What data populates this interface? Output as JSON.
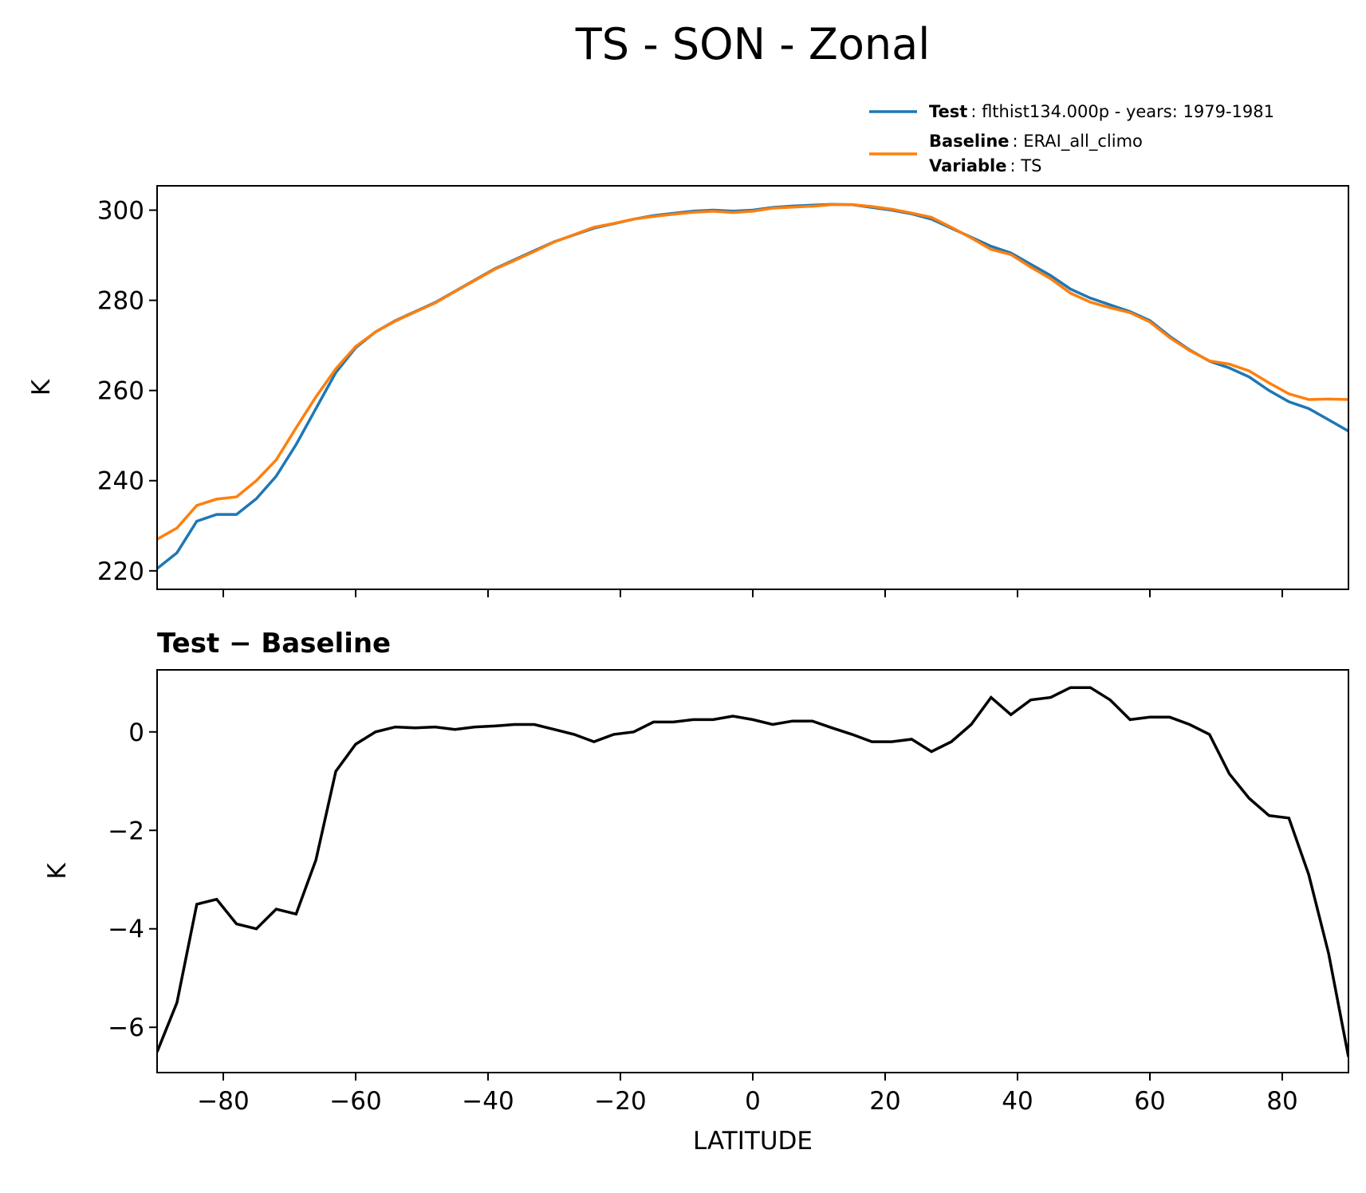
{
  "title": "TS - SON - Zonal",
  "chart_data": [
    {
      "type": "line",
      "ylabel": "K",
      "x": [
        -90,
        -87,
        -84,
        -81,
        -78,
        -75,
        -72,
        -69,
        -66,
        -63,
        -60,
        -57,
        -54,
        -51,
        -48,
        -45,
        -42,
        -39,
        -36,
        -33,
        -30,
        -27,
        -24,
        -21,
        -18,
        -15,
        -12,
        -9,
        -6,
        -3,
        0,
        3,
        6,
        9,
        12,
        15,
        18,
        21,
        24,
        27,
        30,
        33,
        36,
        39,
        42,
        45,
        48,
        51,
        54,
        57,
        60,
        63,
        66,
        69,
        72,
        75,
        78,
        81,
        84,
        87,
        90
      ],
      "series": [
        {
          "name": "Test",
          "description": ": flthist134.000p - years: 1979-1981",
          "color": "#1f77b4",
          "values": [
            220.5,
            224,
            231,
            232.5,
            232.5,
            236,
            241,
            248,
            256,
            264,
            269.5,
            273,
            275.5,
            277.5,
            279.5,
            282,
            284.5,
            287,
            289,
            291,
            293,
            294.5,
            296,
            297,
            298,
            298.8,
            299.3,
            299.8,
            300,
            299.8,
            300,
            300.6,
            300.9,
            301.1,
            301.3,
            301.2,
            300.6,
            300,
            299.2,
            298,
            296,
            294,
            292,
            290.5,
            288,
            285.5,
            282.5,
            280.5,
            279,
            277.5,
            275.5,
            272,
            269,
            266.5,
            265,
            263,
            260,
            257.5,
            256,
            253.5,
            251
          ]
        },
        {
          "name": "Baseline",
          "description": ": ERAI_all_climo",
          "color": "#ff7f0e",
          "values": [
            227,
            229.5,
            234.5,
            235.9,
            236.4,
            240,
            244.6,
            251.7,
            258.6,
            264.8,
            269.75,
            273,
            275.4,
            277.42,
            279.4,
            281.95,
            284.4,
            286.88,
            288.85,
            290.85,
            292.95,
            294.55,
            296.2,
            297.05,
            298,
            298.6,
            299.1,
            299.55,
            299.75,
            299.48,
            299.75,
            300.45,
            300.68,
            300.88,
            301.22,
            301.25,
            300.8,
            300.2,
            299.35,
            298.4,
            296.2,
            293.85,
            291.3,
            290.15,
            287.35,
            284.8,
            281.6,
            279.6,
            278.35,
            277.25,
            275.2,
            271.7,
            268.85,
            266.55,
            265.85,
            264.35,
            261.7,
            259.25,
            258,
            258.1,
            258
          ]
        }
      ],
      "variable_label": "Variable",
      "variable": ": TS",
      "xlim": [
        -90,
        90
      ],
      "ylim": [
        215.9,
        305.4
      ],
      "xticks": [
        -80,
        -60,
        -40,
        -20,
        0,
        20,
        40,
        60,
        80
      ],
      "show_xtick_labels": false,
      "yticks": [
        220,
        240,
        260,
        280,
        300
      ]
    },
    {
      "type": "line",
      "title": "Test − Baseline",
      "ylabel": "K",
      "xlabel": "LATITUDE",
      "x": [
        -90,
        -87,
        -84,
        -81,
        -78,
        -75,
        -72,
        -69,
        -66,
        -63,
        -60,
        -57,
        -54,
        -51,
        -48,
        -45,
        -42,
        -39,
        -36,
        -33,
        -30,
        -27,
        -24,
        -21,
        -18,
        -15,
        -12,
        -9,
        -6,
        -3,
        0,
        3,
        6,
        9,
        12,
        15,
        18,
        21,
        24,
        27,
        30,
        33,
        36,
        39,
        42,
        45,
        48,
        51,
        54,
        57,
        60,
        63,
        66,
        69,
        72,
        75,
        78,
        81,
        84,
        87,
        90
      ],
      "color": "#000000",
      "values": [
        -6.5,
        -5.5,
        -3.5,
        -3.4,
        -3.9,
        -4.0,
        -3.6,
        -3.7,
        -2.6,
        -0.8,
        -0.25,
        0,
        0.1,
        0.08,
        0.1,
        0.05,
        0.1,
        0.12,
        0.15,
        0.15,
        0.05,
        -0.05,
        -0.2,
        -0.05,
        0,
        0.2,
        0.2,
        0.25,
        0.25,
        0.32,
        0.25,
        0.15,
        0.22,
        0.22,
        0.08,
        -0.05,
        -0.2,
        -0.2,
        -0.15,
        -0.4,
        -0.2,
        0.15,
        0.7,
        0.35,
        0.65,
        0.7,
        0.9,
        0.9,
        0.65,
        0.25,
        0.3,
        0.3,
        0.15,
        -0.05,
        -0.85,
        -1.35,
        -1.7,
        -1.75,
        -2.9,
        -4.5,
        -6.6
      ],
      "xlim": [
        -90,
        90
      ],
      "ylim": [
        -6.92,
        1.26
      ],
      "xticks": [
        {
          "value": -80,
          "label": "−80"
        },
        {
          "value": -60,
          "label": "−60"
        },
        {
          "value": -40,
          "label": "−40"
        },
        {
          "value": -20,
          "label": "−20"
        },
        0,
        20,
        40,
        60,
        80
      ],
      "show_xtick_labels": true,
      "yticks": [
        {
          "value": -6,
          "label": "−6"
        },
        {
          "value": -4,
          "label": "−4"
        },
        {
          "value": -2,
          "label": "−2"
        },
        0
      ]
    }
  ]
}
